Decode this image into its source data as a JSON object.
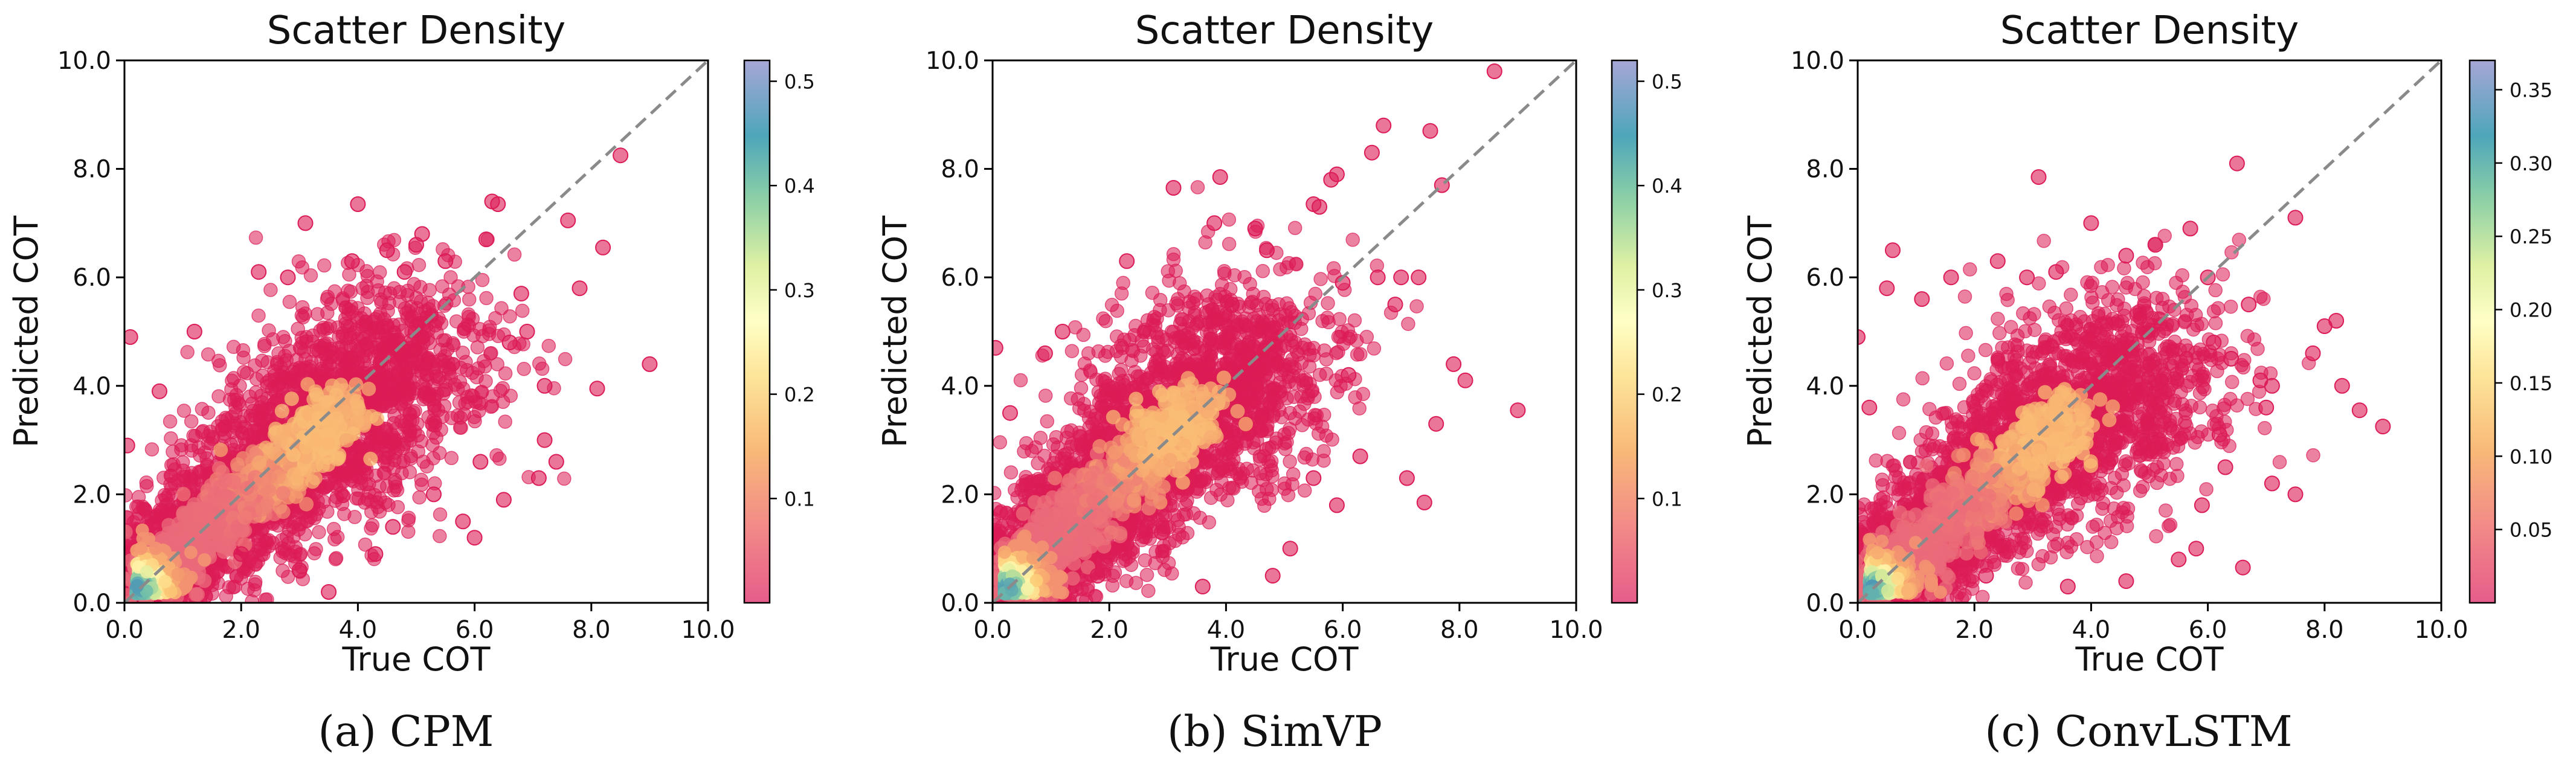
{
  "colors": {
    "point": "#dc1c56",
    "reference_line": "#8a8a8a",
    "colormap": "Spectral (reversed)",
    "colormap_stops": [
      "#e65c8a",
      "#f4a07c",
      "#fee08b",
      "#ffffbf",
      "#e6f598",
      "#99d5a4",
      "#4fa9b6",
      "#6f81bf",
      "#a8a5cf"
    ]
  },
  "captions": [
    "(a) CPM",
    "(b) SimVP",
    "(c) ConvLSTM"
  ],
  "chart_data": [
    {
      "type": "scatter",
      "title": "Scatter Density",
      "xlabel": "True COT",
      "ylabel": "Predicted COT",
      "xlim": [
        0,
        10
      ],
      "ylim": [
        0,
        10
      ],
      "xticks": [
        "0.0",
        "2.0",
        "4.0",
        "6.0",
        "8.0",
        "10.0"
      ],
      "yticks": [
        "0.0",
        "2.0",
        "4.0",
        "6.0",
        "8.0",
        "10.0"
      ],
      "reference_line": "y = x (dashed)",
      "grid": false,
      "colorbar": {
        "range": [
          0,
          0.52
        ],
        "ticks": [
          "0.1",
          "0.2",
          "0.3",
          "0.4",
          "0.5"
        ]
      },
      "density_axis": [
        [
          0.3,
          0.3
        ],
        [
          3.8,
          3.6
        ]
      ],
      "outliers": [
        [
          8.5,
          8.25
        ],
        [
          8.2,
          6.55
        ],
        [
          8.1,
          3.95
        ],
        [
          9.0,
          4.4
        ],
        [
          7.6,
          7.05
        ],
        [
          6.3,
          7.4
        ],
        [
          6.4,
          7.35
        ],
        [
          4.0,
          7.35
        ],
        [
          3.1,
          7.0
        ],
        [
          6.8,
          5.7
        ],
        [
          7.2,
          4.0
        ],
        [
          7.2,
          3.0
        ],
        [
          7.4,
          2.6
        ],
        [
          7.1,
          2.3
        ],
        [
          6.5,
          1.9
        ],
        [
          6.0,
          1.2
        ],
        [
          5.3,
          2.0
        ],
        [
          2.0,
          0.9
        ],
        [
          4.3,
          0.9
        ],
        [
          3.5,
          0.2
        ],
        [
          0.1,
          4.9
        ],
        [
          0.05,
          2.9
        ],
        [
          0.6,
          3.9
        ],
        [
          5.1,
          6.8
        ],
        [
          5.0,
          6.6
        ],
        [
          4.8,
          6.1
        ],
        [
          4.5,
          6.5
        ],
        [
          7.8,
          5.8
        ],
        [
          6.2,
          6.7
        ],
        [
          5.5,
          6.3
        ],
        [
          2.3,
          6.1
        ],
        [
          3.9,
          6.3
        ],
        [
          6.9,
          5.0
        ],
        [
          6.6,
          4.8
        ],
        [
          5.8,
          1.5
        ],
        [
          1.2,
          5.0
        ],
        [
          2.8,
          6.0
        ],
        [
          6.1,
          2.6
        ],
        [
          4.6,
          1.4
        ],
        [
          3.0,
          0.6
        ]
      ]
    },
    {
      "type": "scatter",
      "title": "Scatter Density",
      "xlabel": "True COT",
      "ylabel": "Predicted COT",
      "xlim": [
        0,
        10
      ],
      "ylim": [
        0,
        10
      ],
      "xticks": [
        "0.0",
        "2.0",
        "4.0",
        "6.0",
        "8.0",
        "10.0"
      ],
      "yticks": [
        "0.0",
        "2.0",
        "4.0",
        "6.0",
        "8.0",
        "10.0"
      ],
      "reference_line": "y = x (dashed)",
      "grid": false,
      "colorbar": {
        "range": [
          0,
          0.52
        ],
        "ticks": [
          "0.1",
          "0.2",
          "0.3",
          "0.4",
          "0.5"
        ]
      },
      "density_axis": [
        [
          0.25,
          0.3
        ],
        [
          3.6,
          3.7
        ]
      ],
      "outliers": [
        [
          8.6,
          9.8
        ],
        [
          7.5,
          8.7
        ],
        [
          6.7,
          8.8
        ],
        [
          6.5,
          8.3
        ],
        [
          5.8,
          7.8
        ],
        [
          5.9,
          7.9
        ],
        [
          7.7,
          7.7
        ],
        [
          5.6,
          7.3
        ],
        [
          5.5,
          7.35
        ],
        [
          3.9,
          7.85
        ],
        [
          3.1,
          7.65
        ],
        [
          3.8,
          7.0
        ],
        [
          7.0,
          6.0
        ],
        [
          6.0,
          5.9
        ],
        [
          7.3,
          6.0
        ],
        [
          6.9,
          5.5
        ],
        [
          7.9,
          4.4
        ],
        [
          8.1,
          4.1
        ],
        [
          9.0,
          3.55
        ],
        [
          7.6,
          3.3
        ],
        [
          7.4,
          1.85
        ],
        [
          7.1,
          2.3
        ],
        [
          6.3,
          2.7
        ],
        [
          5.9,
          1.8
        ],
        [
          5.1,
          1.0
        ],
        [
          4.8,
          0.5
        ],
        [
          3.6,
          0.3
        ],
        [
          2.9,
          1.3
        ],
        [
          1.2,
          5.0
        ],
        [
          0.05,
          4.7
        ],
        [
          0.3,
          3.5
        ],
        [
          2.3,
          6.3
        ],
        [
          4.5,
          6.9
        ],
        [
          4.7,
          6.5
        ],
        [
          6.6,
          6.0
        ],
        [
          6.1,
          4.2
        ],
        [
          5.5,
          2.3
        ],
        [
          1.8,
          0.5
        ],
        [
          0.9,
          4.6
        ],
        [
          4.1,
          5.5
        ]
      ]
    },
    {
      "type": "scatter",
      "title": "Scatter Density",
      "xlabel": "True COT",
      "ylabel": "Predicted COT",
      "xlim": [
        0,
        10
      ],
      "ylim": [
        0,
        10
      ],
      "xticks": [
        "0.0",
        "2.0",
        "4.0",
        "6.0",
        "8.0",
        "10.0"
      ],
      "yticks": [
        "0.0",
        "2.0",
        "4.0",
        "6.0",
        "8.0",
        "10.0"
      ],
      "reference_line": "y = x (dashed)",
      "grid": false,
      "colorbar": {
        "range": [
          0,
          0.37
        ],
        "ticks": [
          "0.05",
          "0.10",
          "0.15",
          "0.20",
          "0.25",
          "0.30",
          "0.35"
        ]
      },
      "density_axis": [
        [
          0.25,
          0.3
        ],
        [
          3.8,
          3.5
        ]
      ],
      "outliers": [
        [
          3.1,
          7.85
        ],
        [
          6.5,
          8.1
        ],
        [
          7.5,
          7.1
        ],
        [
          4.0,
          7.0
        ],
        [
          5.7,
          6.9
        ],
        [
          0.6,
          6.5
        ],
        [
          0.5,
          5.8
        ],
        [
          0.0,
          4.9
        ],
        [
          8.0,
          5.1
        ],
        [
          8.2,
          5.2
        ],
        [
          7.1,
          4.0
        ],
        [
          7.0,
          3.6
        ],
        [
          8.3,
          4.0
        ],
        [
          9.0,
          3.25
        ],
        [
          8.6,
          3.55
        ],
        [
          7.5,
          2.0
        ],
        [
          7.1,
          2.2
        ],
        [
          6.6,
          0.65
        ],
        [
          5.9,
          1.8
        ],
        [
          6.9,
          4.1
        ],
        [
          6.3,
          2.5
        ],
        [
          2.4,
          6.3
        ],
        [
          3.4,
          6.1
        ],
        [
          4.6,
          6.4
        ],
        [
          6.1,
          4.8
        ],
        [
          5.8,
          1.0
        ],
        [
          4.6,
          0.4
        ],
        [
          3.6,
          0.3
        ],
        [
          2.2,
          0.5
        ],
        [
          1.1,
          5.6
        ],
        [
          6.0,
          6.0
        ],
        [
          6.2,
          3.1
        ],
        [
          5.5,
          0.8
        ],
        [
          6.4,
          4.5
        ],
        [
          0.2,
          3.6
        ],
        [
          2.9,
          6.0
        ],
        [
          7.8,
          4.6
        ],
        [
          6.7,
          5.5
        ],
        [
          5.1,
          6.6
        ],
        [
          1.6,
          6.0
        ]
      ]
    }
  ]
}
